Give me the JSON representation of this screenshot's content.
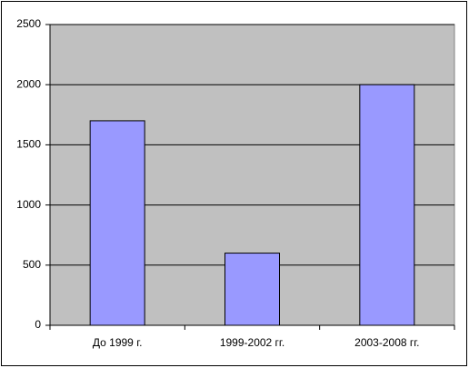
{
  "chart_data": {
    "type": "bar",
    "categories": [
      "До 1999 г.",
      "1999-2002 гг.",
      "2003-2008 гг."
    ],
    "values": [
      1700,
      600,
      2000
    ],
    "color": "#9999ff",
    "plot_background": "#c0c0c0",
    "ylim": [
      0,
      2500
    ],
    "yticks": [
      0,
      500,
      1000,
      1500,
      2000,
      2500
    ],
    "grid": true
  }
}
